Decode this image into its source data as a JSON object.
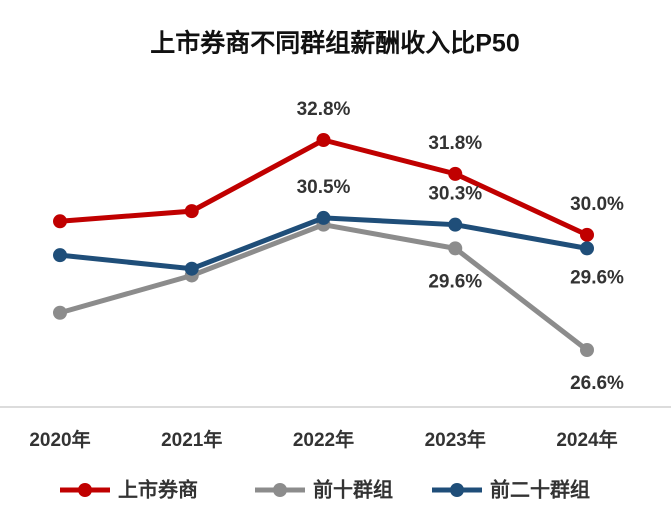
{
  "chart_data": {
    "type": "line",
    "title": "上市券商不同群组薪酬收入比P50",
    "categories": [
      "2020年",
      "2021年",
      "2022年",
      "2023年",
      "2024年"
    ],
    "series": [
      {
        "name": "上市券商",
        "color": "#c00000",
        "values": [
          30.4,
          30.7,
          32.8,
          31.8,
          30.0
        ],
        "value_labels": [
          null,
          null,
          "32.8%",
          "31.8%",
          "30.0%"
        ]
      },
      {
        "name": "前十群组",
        "color": "#8c8c8c",
        "values": [
          27.7,
          28.8,
          30.3,
          29.6,
          26.6
        ],
        "value_labels": [
          null,
          null,
          null,
          "29.6%",
          "26.6%"
        ]
      },
      {
        "name": "前二十群组",
        "color": "#1f4e79",
        "values": [
          29.4,
          29.0,
          30.5,
          30.3,
          29.6
        ],
        "value_labels": [
          null,
          null,
          "30.5%",
          "30.3%",
          "29.6%"
        ]
      }
    ]
  }
}
